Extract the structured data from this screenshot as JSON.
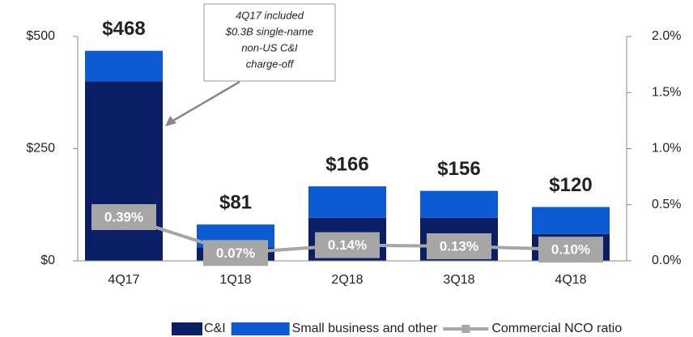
{
  "chart_data": {
    "type": "bar",
    "categories": [
      "4Q17",
      "1Q18",
      "2Q18",
      "3Q18",
      "4Q18"
    ],
    "series": [
      {
        "name": "C&I",
        "color": "#0b1f66",
        "values": [
          400,
          30,
          96,
          96,
          60
        ]
      },
      {
        "name": "Small business and other",
        "color": "#0d5bd4",
        "values": [
          68,
          51,
          70,
          60,
          60
        ]
      },
      {
        "name": "Commercial NCO ratio",
        "color": "#a6a6a6",
        "axis": "y2",
        "type": "line",
        "values": [
          0.39,
          0.07,
          0.14,
          0.13,
          0.1
        ],
        "value_labels": [
          "0.39%",
          "0.07%",
          "0.14%",
          "0.13%",
          "0.10%"
        ]
      }
    ],
    "totals": [
      468,
      81,
      166,
      156,
      120
    ],
    "total_labels": [
      "$468",
      "$81",
      "$166",
      "$156",
      "$120"
    ],
    "annotation": [
      "4Q17 included",
      "$0.3B single-name",
      "non-US C&I",
      "charge-off"
    ],
    "ylim": [
      0,
      500
    ],
    "yticks": [
      {
        "value": 0,
        "label": "$0"
      },
      {
        "value": 250,
        "label": "$250"
      },
      {
        "value": 500,
        "label": "$500"
      }
    ],
    "y2lim": [
      0,
      2.0
    ],
    "y2ticks": [
      {
        "value": 0,
        "label": "0.0%"
      },
      {
        "value": 0.5,
        "label": "0.5%"
      },
      {
        "value": 1.0,
        "label": "1.0%"
      },
      {
        "value": 1.5,
        "label": "1.5%"
      },
      {
        "value": 2.0,
        "label": "2.0%"
      }
    ],
    "legend": "bottom"
  }
}
